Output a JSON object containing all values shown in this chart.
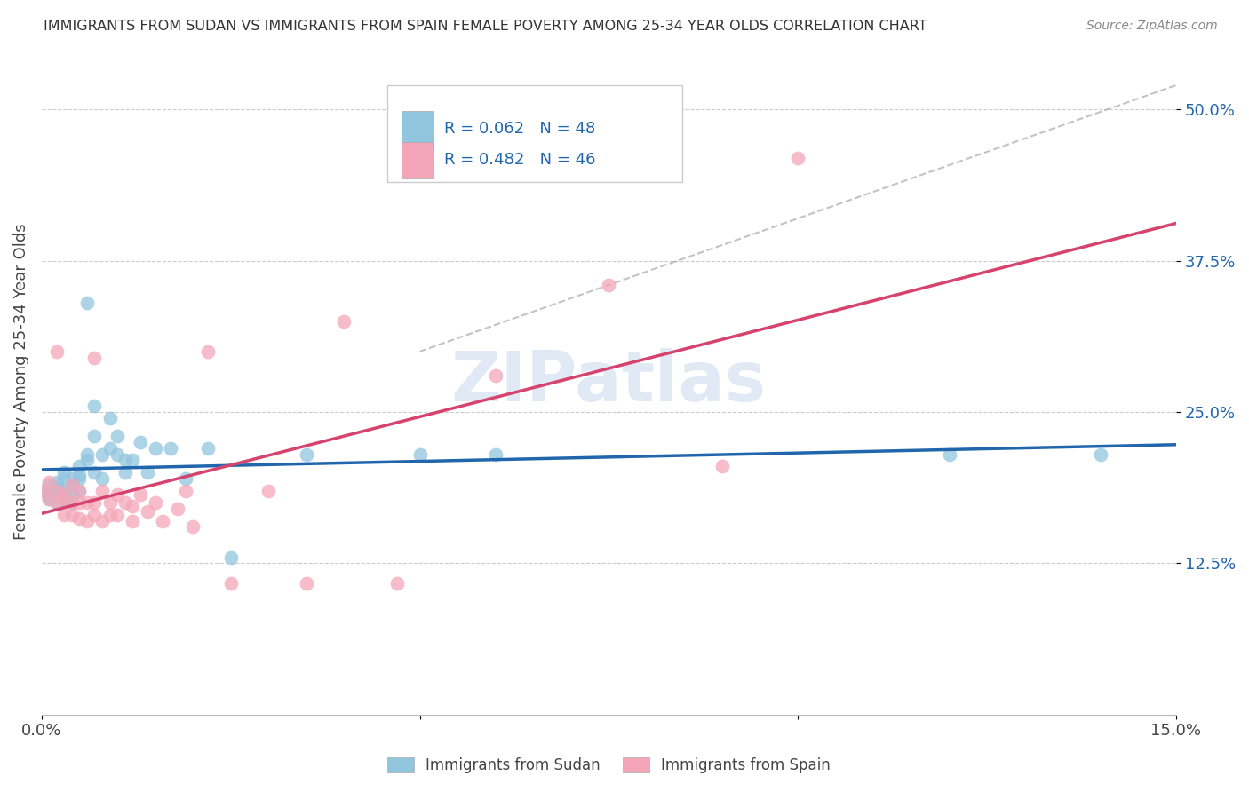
{
  "title": "IMMIGRANTS FROM SUDAN VS IMMIGRANTS FROM SPAIN FEMALE POVERTY AMONG 25-34 YEAR OLDS CORRELATION CHART",
  "source": "Source: ZipAtlas.com",
  "ylabel": "Female Poverty Among 25-34 Year Olds",
  "xlim": [
    0.0,
    0.15
  ],
  "ylim": [
    0.0,
    0.55
  ],
  "xtick_positions": [
    0.0,
    0.05,
    0.1,
    0.15
  ],
  "xticklabels": [
    "0.0%",
    "",
    "",
    "15.0%"
  ],
  "ytick_positions": [
    0.125,
    0.25,
    0.375,
    0.5
  ],
  "ytick_labels": [
    "12.5%",
    "25.0%",
    "37.5%",
    "50.0%"
  ],
  "legend_r_sudan": "R = 0.062",
  "legend_n_sudan": "N = 48",
  "legend_r_spain": "R = 0.482",
  "legend_n_spain": "N = 46",
  "color_sudan": "#92c5de",
  "color_spain": "#f4a6b8",
  "line_color_sudan": "#2166ac",
  "line_color_spain": "#d6436e",
  "watermark": "ZIPatlas",
  "sudan_x": [
    0.0005,
    0.001,
    0.001,
    0.001,
    0.002,
    0.002,
    0.002,
    0.002,
    0.003,
    0.003,
    0.003,
    0.003,
    0.003,
    0.004,
    0.004,
    0.004,
    0.004,
    0.005,
    0.005,
    0.005,
    0.005,
    0.006,
    0.006,
    0.006,
    0.007,
    0.007,
    0.007,
    0.008,
    0.008,
    0.009,
    0.009,
    0.01,
    0.01,
    0.011,
    0.011,
    0.012,
    0.013,
    0.014,
    0.015,
    0.017,
    0.019,
    0.022,
    0.025,
    0.035,
    0.05,
    0.06,
    0.12,
    0.14
  ],
  "sudan_y": [
    0.185,
    0.18,
    0.19,
    0.178,
    0.183,
    0.175,
    0.192,
    0.188,
    0.195,
    0.182,
    0.178,
    0.2,
    0.185,
    0.19,
    0.182,
    0.195,
    0.175,
    0.198,
    0.205,
    0.185,
    0.195,
    0.34,
    0.215,
    0.21,
    0.2,
    0.255,
    0.23,
    0.215,
    0.195,
    0.245,
    0.22,
    0.23,
    0.215,
    0.2,
    0.21,
    0.21,
    0.225,
    0.2,
    0.22,
    0.22,
    0.195,
    0.22,
    0.13,
    0.215,
    0.215,
    0.215,
    0.215,
    0.215
  ],
  "spain_x": [
    0.0005,
    0.001,
    0.001,
    0.002,
    0.002,
    0.002,
    0.003,
    0.003,
    0.003,
    0.004,
    0.004,
    0.004,
    0.005,
    0.005,
    0.005,
    0.006,
    0.006,
    0.007,
    0.007,
    0.007,
    0.008,
    0.008,
    0.009,
    0.009,
    0.01,
    0.01,
    0.011,
    0.012,
    0.012,
    0.013,
    0.014,
    0.015,
    0.016,
    0.018,
    0.019,
    0.02,
    0.022,
    0.025,
    0.03,
    0.035,
    0.04,
    0.047,
    0.06,
    0.075,
    0.09,
    0.1
  ],
  "spain_y": [
    0.185,
    0.178,
    0.192,
    0.3,
    0.175,
    0.185,
    0.182,
    0.178,
    0.165,
    0.19,
    0.175,
    0.165,
    0.185,
    0.175,
    0.162,
    0.175,
    0.16,
    0.295,
    0.175,
    0.165,
    0.185,
    0.16,
    0.175,
    0.165,
    0.182,
    0.165,
    0.175,
    0.172,
    0.16,
    0.182,
    0.168,
    0.175,
    0.16,
    0.17,
    0.185,
    0.155,
    0.3,
    0.108,
    0.185,
    0.108,
    0.325,
    0.108,
    0.28,
    0.355,
    0.205,
    0.46
  ]
}
